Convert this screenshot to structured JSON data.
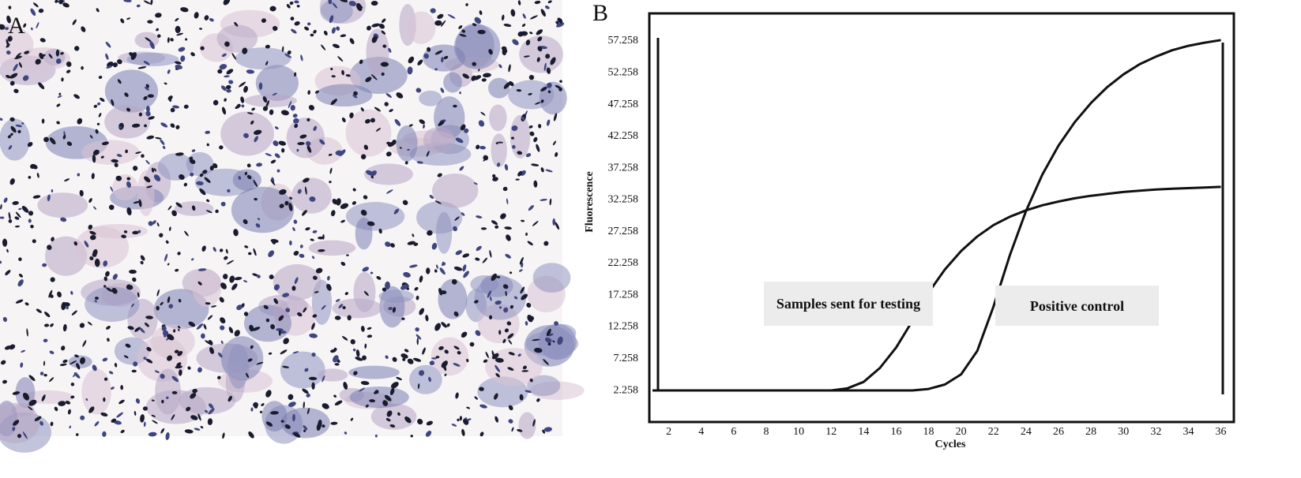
{
  "panels": [
    "A",
    "B"
  ],
  "chart_data": {
    "type": "line",
    "x_label": "Cycles",
    "y_label": "Fluorescence",
    "x": [
      1,
      2,
      3,
      4,
      5,
      6,
      7,
      8,
      9,
      10,
      11,
      12,
      13,
      14,
      15,
      16,
      17,
      18,
      19,
      20,
      21,
      22,
      23,
      24,
      25,
      26,
      27,
      28,
      29,
      30,
      31,
      32,
      33,
      34,
      35,
      36
    ],
    "series": [
      {
        "name": "Samples sent for testing",
        "color": "#111111",
        "values": [
          2.26,
          2.26,
          2.26,
          2.26,
          2.26,
          2.26,
          2.26,
          2.26,
          2.26,
          2.26,
          2.26,
          2.26,
          2.6,
          3.6,
          5.8,
          9.0,
          13.2,
          17.7,
          21.3,
          24.2,
          26.5,
          28.3,
          29.6,
          30.6,
          31.4,
          32.0,
          32.5,
          32.9,
          33.2,
          33.5,
          33.7,
          33.9,
          34.0,
          34.1,
          34.2,
          34.3
        ]
      },
      {
        "name": "Positive control",
        "color": "#111111",
        "values": [
          2.26,
          2.26,
          2.26,
          2.26,
          2.26,
          2.26,
          2.26,
          2.26,
          2.26,
          2.26,
          2.26,
          2.26,
          2.26,
          2.26,
          2.26,
          2.26,
          2.26,
          2.5,
          3.2,
          4.8,
          8.5,
          15.5,
          23.5,
          30.5,
          36.2,
          40.8,
          44.5,
          47.5,
          50.0,
          52.0,
          53.6,
          54.8,
          55.8,
          56.5,
          57.0,
          57.4
        ]
      }
    ],
    "xlim": [
      0.8,
      36.8
    ],
    "ylim": [
      -2.7,
      61.6
    ],
    "xticks": [
      2,
      4,
      6,
      8,
      10,
      12,
      14,
      16,
      18,
      20,
      22,
      24,
      26,
      28,
      30,
      32,
      34,
      36
    ],
    "yticks": [
      2.258,
      7.258,
      12.258,
      17.258,
      22.258,
      27.258,
      32.258,
      37.258,
      42.258,
      47.258,
      52.258,
      57.258
    ]
  }
}
